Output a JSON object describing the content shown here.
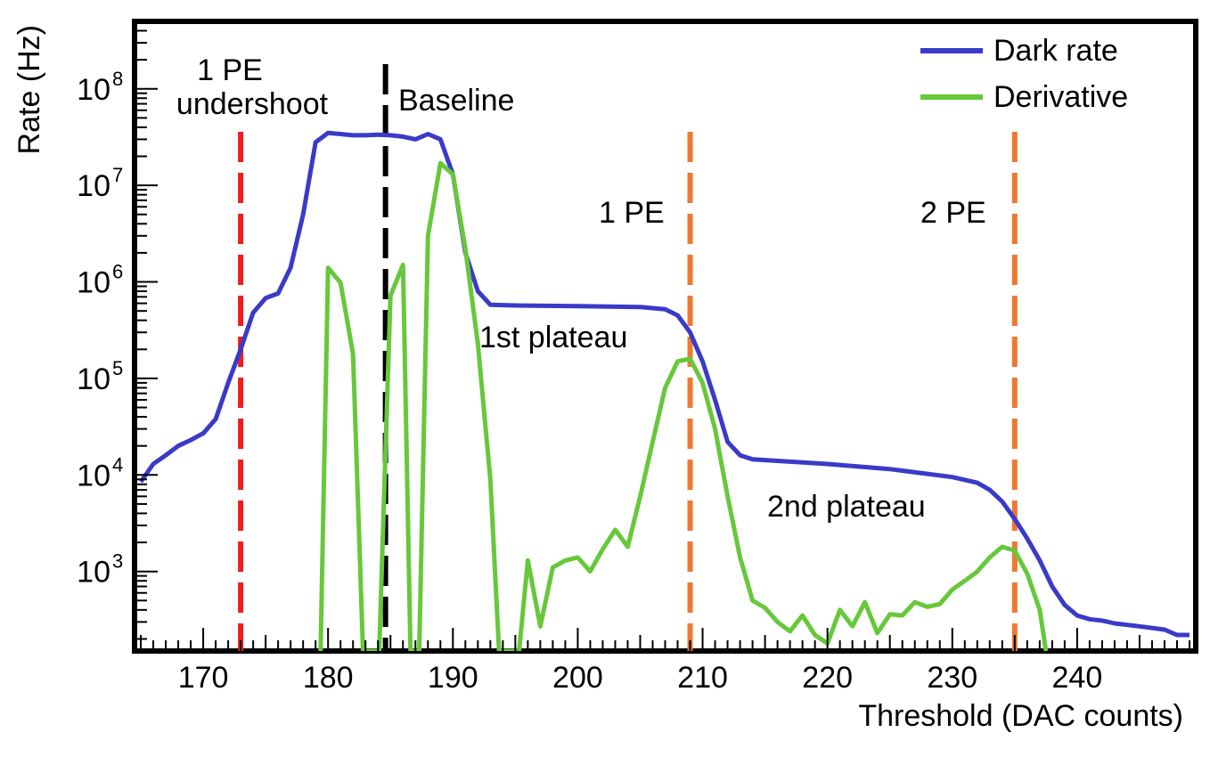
{
  "chart_data": {
    "type": "line",
    "title": "",
    "xlabel": "Threshold (DAC counts)",
    "ylabel": "Rate (Hz)",
    "xlim": [
      164.5,
      249.5
    ],
    "ylim": [
      150,
      500000000
    ],
    "yscale": "log",
    "grid": false,
    "legend_position": "top-right",
    "x_ticks": [
      {
        "value": 170,
        "label": "170"
      },
      {
        "value": 180,
        "label": "180"
      },
      {
        "value": 190,
        "label": "190"
      },
      {
        "value": 200,
        "label": "200"
      },
      {
        "value": 210,
        "label": "210"
      },
      {
        "value": 220,
        "label": "220"
      },
      {
        "value": 230,
        "label": "230"
      },
      {
        "value": 240,
        "label": "240"
      }
    ],
    "y_ticks": [
      {
        "value": 1000,
        "base": "10",
        "exp": "3"
      },
      {
        "value": 10000,
        "base": "10",
        "exp": "4"
      },
      {
        "value": 100000,
        "base": "10",
        "exp": "5"
      },
      {
        "value": 1000000,
        "base": "10",
        "exp": "6"
      },
      {
        "value": 10000000,
        "base": "10",
        "exp": "7"
      },
      {
        "value": 100000000,
        "base": "10",
        "exp": "8"
      }
    ],
    "series": [
      {
        "name": "Dark rate",
        "color": "#3a3ac8",
        "points": [
          [
            165,
            8500
          ],
          [
            166,
            13000
          ],
          [
            167,
            16000
          ],
          [
            168,
            20000
          ],
          [
            169,
            23000
          ],
          [
            170,
            27000
          ],
          [
            171,
            38000
          ],
          [
            172,
            90000
          ],
          [
            173,
            200000
          ],
          [
            174,
            480000
          ],
          [
            175,
            680000
          ],
          [
            176,
            760000
          ],
          [
            177,
            1400000
          ],
          [
            178,
            5000000
          ],
          [
            179,
            28000000
          ],
          [
            180,
            35000000
          ],
          [
            181,
            34000000
          ],
          [
            182,
            33000000
          ],
          [
            183,
            33000000
          ],
          [
            184,
            33500000
          ],
          [
            185,
            33000000
          ],
          [
            186,
            32000000
          ],
          [
            187,
            30000000
          ],
          [
            188,
            34000000
          ],
          [
            189,
            30000000
          ],
          [
            190,
            13000000
          ],
          [
            191,
            2000000
          ],
          [
            192,
            800000
          ],
          [
            193,
            580000
          ],
          [
            195,
            570000
          ],
          [
            200,
            560000
          ],
          [
            205,
            550000
          ],
          [
            207,
            520000
          ],
          [
            208,
            450000
          ],
          [
            209,
            300000
          ],
          [
            210,
            150000
          ],
          [
            211,
            60000
          ],
          [
            212,
            22000
          ],
          [
            213,
            16000
          ],
          [
            214,
            14500
          ],
          [
            216,
            14000
          ],
          [
            220,
            13000
          ],
          [
            225,
            11500
          ],
          [
            230,
            9500
          ],
          [
            232,
            8300
          ],
          [
            233,
            7000
          ],
          [
            234,
            5300
          ],
          [
            235,
            3500
          ],
          [
            236,
            2200
          ],
          [
            237,
            1300
          ],
          [
            238,
            700
          ],
          [
            239,
            450
          ],
          [
            240,
            350
          ],
          [
            241,
            320
          ],
          [
            242,
            310
          ],
          [
            243,
            290
          ],
          [
            245,
            270
          ],
          [
            247,
            250
          ],
          [
            248,
            220
          ],
          [
            249,
            220
          ]
        ]
      },
      {
        "name": "Derivative",
        "color": "#66c83a",
        "points": [
          [
            179.4,
            150
          ],
          [
            180,
            1400000
          ],
          [
            181,
            980000
          ],
          [
            182,
            180000
          ],
          [
            182.8,
            150
          ],
          [
            184.1,
            150
          ],
          [
            185,
            720000
          ],
          [
            186,
            1500000
          ],
          [
            186.6,
            150
          ],
          [
            187.3,
            150
          ],
          [
            188,
            3000000
          ],
          [
            189,
            17000000
          ],
          [
            190,
            13000000
          ],
          [
            191,
            2200000
          ],
          [
            192,
            230000
          ],
          [
            193,
            9000
          ],
          [
            193.7,
            150
          ],
          [
            195.3,
            150
          ],
          [
            196,
            1300
          ],
          [
            197,
            270
          ],
          [
            198,
            1100
          ],
          [
            199,
            1300
          ],
          [
            200,
            1400
          ],
          [
            201,
            1000
          ],
          [
            202,
            1700
          ],
          [
            203,
            2700
          ],
          [
            204,
            1800
          ],
          [
            205,
            6000
          ],
          [
            206,
            22000
          ],
          [
            207,
            80000
          ],
          [
            208,
            150000
          ],
          [
            209,
            160000
          ],
          [
            210,
            90000
          ],
          [
            211,
            30000
          ],
          [
            212,
            6000
          ],
          [
            213,
            1400
          ],
          [
            214,
            500
          ],
          [
            215,
            420
          ],
          [
            216,
            300
          ],
          [
            217,
            240
          ],
          [
            218,
            350
          ],
          [
            219,
            220
          ],
          [
            220,
            180
          ],
          [
            221,
            400
          ],
          [
            222,
            270
          ],
          [
            223,
            480
          ],
          [
            224,
            230
          ],
          [
            225,
            360
          ],
          [
            226,
            350
          ],
          [
            227,
            480
          ],
          [
            228,
            430
          ],
          [
            229,
            460
          ],
          [
            230,
            650
          ],
          [
            231,
            800
          ],
          [
            232,
            1000
          ],
          [
            233,
            1400
          ],
          [
            234,
            1800
          ],
          [
            235,
            1650
          ],
          [
            236,
            950
          ],
          [
            237,
            400
          ],
          [
            237.5,
            150
          ]
        ]
      }
    ],
    "vlines": [
      {
        "x": 173,
        "color": "#ee1c1c"
      },
      {
        "x": 184.6,
        "color": "#000000"
      },
      {
        "x": 209,
        "color": "#f07830"
      },
      {
        "x": 235,
        "color": "#f07830"
      }
    ],
    "annotations": [
      {
        "id": "undershoot-line1",
        "text": "1 PE"
      },
      {
        "id": "undershoot-line2",
        "text": "undershoot"
      },
      {
        "id": "baseline",
        "text": "Baseline"
      },
      {
        "id": "pe1",
        "text": "1 PE"
      },
      {
        "id": "pe2",
        "text": "2 PE"
      },
      {
        "id": "plateau1",
        "text": "1st plateau"
      },
      {
        "id": "plateau2",
        "text": "2nd plateau"
      }
    ]
  }
}
